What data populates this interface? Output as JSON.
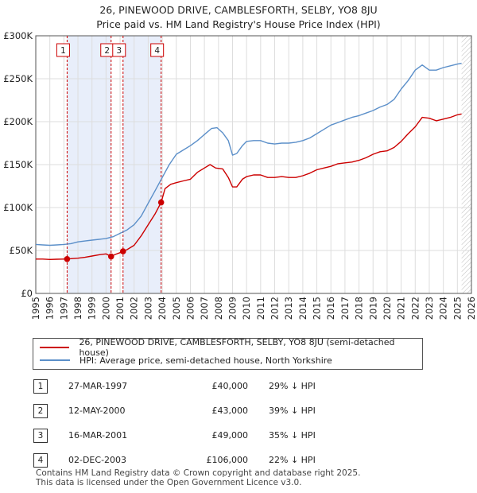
{
  "header": {
    "title": "26, PINEWOOD DRIVE, CAMBLESFORTH, SELBY, YO8 8JU",
    "subtitle": "Price paid vs. HM Land Registry's House Price Index (HPI)"
  },
  "chart_data": {
    "type": "line",
    "xlim": [
      1995,
      2026
    ],
    "ylim": [
      0,
      300000
    ],
    "x_ticks": [
      1995,
      1996,
      1997,
      1998,
      1999,
      2000,
      2001,
      2002,
      2003,
      2004,
      2005,
      2006,
      2007,
      2008,
      2009,
      2010,
      2011,
      2012,
      2013,
      2014,
      2015,
      2016,
      2017,
      2018,
      2019,
      2020,
      2021,
      2022,
      2023,
      2024,
      2025,
      2026
    ],
    "y_ticks": [
      {
        "value": 0,
        "label": "£0"
      },
      {
        "value": 50000,
        "label": "£50K"
      },
      {
        "value": 100000,
        "label": "£100K"
      },
      {
        "value": 150000,
        "label": "£150K"
      },
      {
        "value": 200000,
        "label": "£200K"
      },
      {
        "value": 250000,
        "label": "£250K"
      },
      {
        "value": 300000,
        "label": "£300K"
      }
    ],
    "shaded_ranges": [
      [
        1997.23,
        2000.36
      ],
      [
        2001.21,
        2003.92
      ]
    ],
    "data_end": 2025.3,
    "series": [
      {
        "name": "26, PINEWOOD DRIVE, CAMBLESFORTH, SELBY, YO8 8JU (semi-detached house)",
        "color": "#cc0000",
        "x": [
          1995,
          1995.5,
          1996,
          1996.5,
          1997,
          1997.23,
          1997.5,
          1998,
          1998.5,
          1999,
          1999.5,
          2000,
          2000.36,
          2000.6,
          2001,
          2001.21,
          2001.5,
          2002,
          2002.5,
          2003,
          2003.5,
          2003.92,
          2004.2,
          2004.6,
          2005,
          2005.5,
          2006,
          2006.5,
          2007,
          2007.4,
          2007.8,
          2008.3,
          2008.7,
          2009,
          2009.3,
          2009.7,
          2010,
          2010.5,
          2011,
          2011.5,
          2012,
          2012.5,
          2013,
          2013.5,
          2014,
          2014.5,
          2015,
          2015.5,
          2016,
          2016.5,
          2017,
          2017.5,
          2018,
          2018.5,
          2019,
          2019.5,
          2020,
          2020.5,
          2021,
          2021.5,
          2022,
          2022.5,
          2023,
          2023.5,
          2024,
          2024.5,
          2025,
          2025.3
        ],
        "values": [
          40000,
          40000,
          39500,
          39800,
          40000,
          40000,
          40500,
          41000,
          42000,
          43500,
          45000,
          46000,
          43000,
          45000,
          47500,
          49000,
          51000,
          56000,
          67000,
          80000,
          93000,
          106000,
          122000,
          127000,
          129000,
          131000,
          133000,
          141000,
          146000,
          150000,
          146000,
          145000,
          135000,
          124000,
          124000,
          133000,
          136000,
          138000,
          138000,
          135000,
          135000,
          136000,
          135000,
          135000,
          137000,
          140000,
          144000,
          146000,
          148000,
          151000,
          152000,
          153000,
          155000,
          158000,
          162000,
          165000,
          166000,
          170000,
          177000,
          186000,
          194000,
          205000,
          204000,
          201000,
          203000,
          205000,
          208000,
          209000
        ]
      },
      {
        "name": "HPI: Average price, semi-detached house, North Yorkshire",
        "color": "#5b8fc9",
        "x": [
          1995,
          1995.5,
          1996,
          1996.5,
          1997,
          1997.5,
          1998,
          1998.5,
          1999,
          1999.5,
          2000,
          2000.5,
          2001,
          2001.5,
          2002,
          2002.5,
          2003,
          2003.5,
          2004,
          2004.5,
          2005,
          2005.5,
          2006,
          2006.5,
          2007,
          2007.5,
          2007.9,
          2008.3,
          2008.7,
          2009,
          2009.3,
          2009.7,
          2010,
          2010.5,
          2011,
          2011.5,
          2012,
          2012.5,
          2013,
          2013.5,
          2014,
          2014.5,
          2015,
          2015.5,
          2016,
          2016.5,
          2017,
          2017.5,
          2018,
          2018.5,
          2019,
          2019.5,
          2020,
          2020.5,
          2021,
          2021.5,
          2022,
          2022.5,
          2023,
          2023.5,
          2024,
          2024.5,
          2025,
          2025.3
        ],
        "values": [
          57000,
          56500,
          56000,
          56500,
          57000,
          58000,
          60000,
          61000,
          62000,
          63000,
          64000,
          66000,
          70000,
          74000,
          80000,
          90000,
          105000,
          120000,
          135000,
          150000,
          162000,
          167000,
          172000,
          178000,
          185000,
          192000,
          193000,
          187000,
          178000,
          161000,
          163000,
          172000,
          177000,
          178000,
          178000,
          175000,
          174000,
          175000,
          175000,
          176000,
          178000,
          181000,
          186000,
          191000,
          196000,
          199000,
          202000,
          205000,
          207000,
          210000,
          213000,
          217000,
          220000,
          226000,
          238000,
          248000,
          260000,
          266000,
          260000,
          260000,
          263000,
          265000,
          267000,
          268000
        ]
      }
    ],
    "markers": [
      {
        "label": "1",
        "x": 1997.23,
        "value": 40000
      },
      {
        "label": "2",
        "x": 2000.36,
        "value": 43000
      },
      {
        "label": "3",
        "x": 2001.21,
        "value": 49000
      },
      {
        "label": "4",
        "x": 2003.92,
        "value": 106000
      }
    ]
  },
  "legend": [
    {
      "label": "26, PINEWOOD DRIVE, CAMBLESFORTH, SELBY, YO8 8JU (semi-detached house)",
      "color": "#cc0000"
    },
    {
      "label": "HPI: Average price, semi-detached house, North Yorkshire",
      "color": "#5b8fc9"
    }
  ],
  "sales": [
    {
      "num": "1",
      "date": "27-MAR-1997",
      "price": "£40,000",
      "hpi": "29% ↓ HPI"
    },
    {
      "num": "2",
      "date": "12-MAY-2000",
      "price": "£43,000",
      "hpi": "39% ↓ HPI"
    },
    {
      "num": "3",
      "date": "16-MAR-2001",
      "price": "£49,000",
      "hpi": "35% ↓ HPI"
    },
    {
      "num": "4",
      "date": "02-DEC-2003",
      "price": "£106,000",
      "hpi": "22% ↓ HPI"
    }
  ],
  "footer": {
    "line1": "Contains HM Land Registry data © Crown copyright and database right 2025.",
    "line2": "This data is licensed under the Open Government Licence v3.0."
  }
}
